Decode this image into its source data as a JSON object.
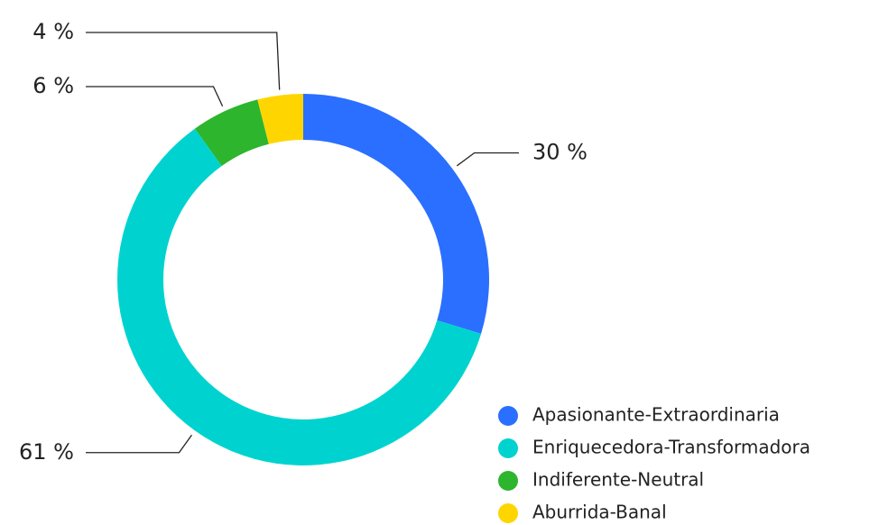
{
  "chart_data": {
    "type": "donut",
    "categories": [
      "Apasionante-Extraordinaria",
      "Enriquecedora-Transformadora",
      "Indiferente-Neutral",
      "Aburrida-Banal"
    ],
    "values": [
      30,
      61,
      6,
      4
    ],
    "value_labels": [
      "30 %",
      "61 %",
      "6 %",
      "4 %"
    ],
    "colors": [
      "#2a6fff",
      "#00d3cf",
      "#2db52d",
      "#ffd500"
    ],
    "legend": "bottom-right"
  }
}
